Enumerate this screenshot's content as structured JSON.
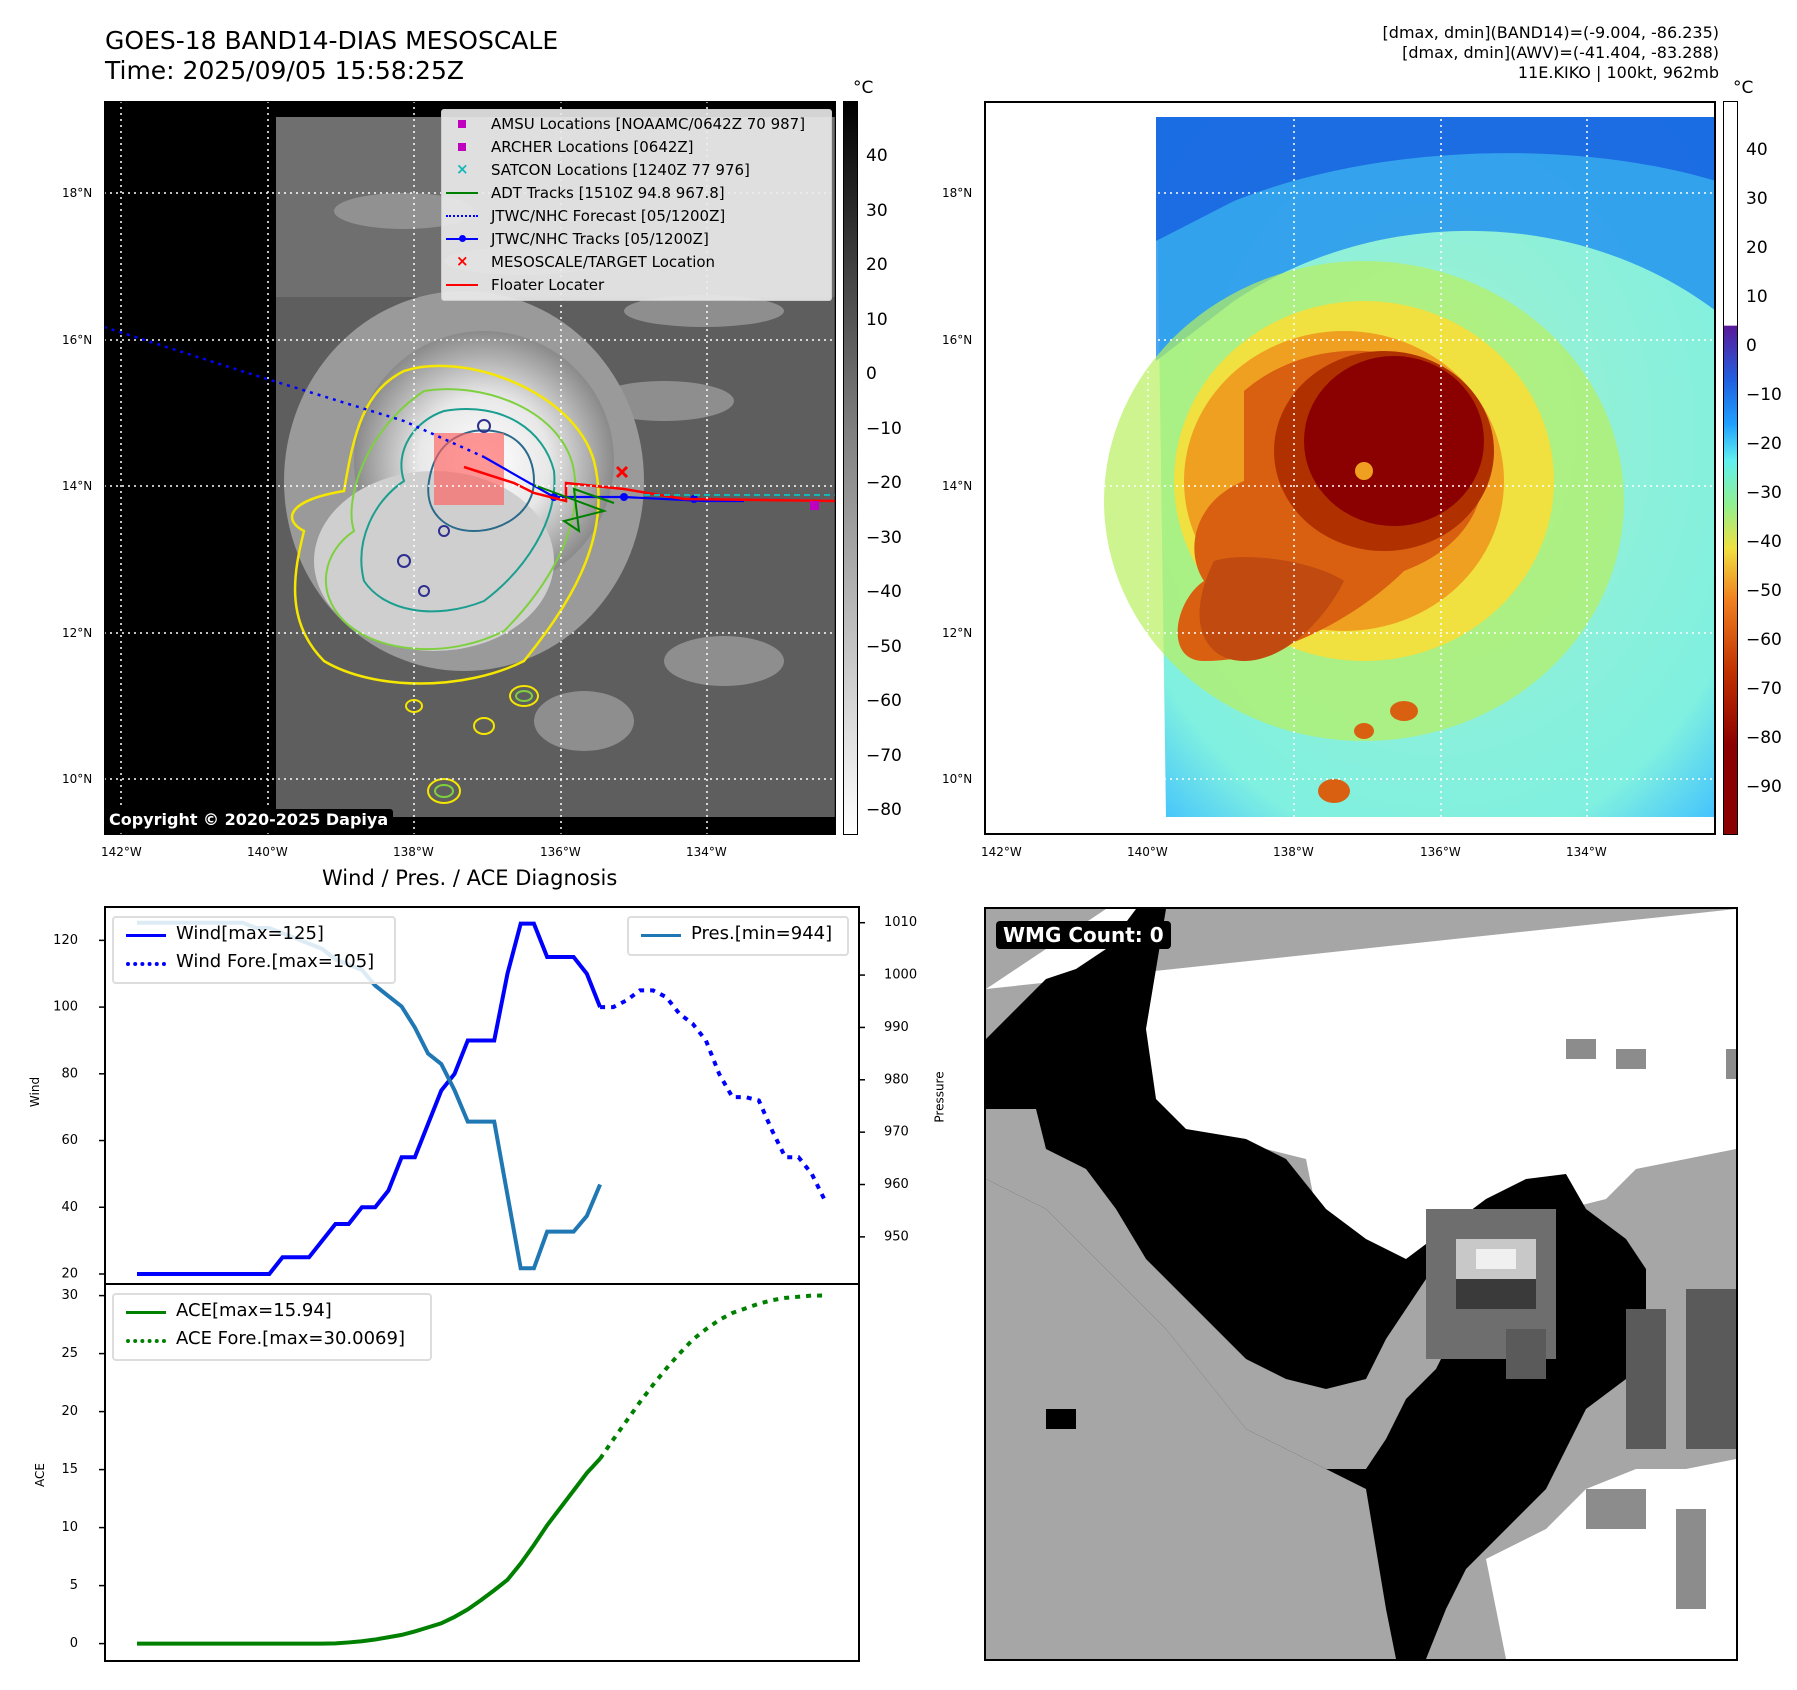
{
  "header": {
    "title_line1": "GOES-18 BAND14-DIAS MESOSCALE",
    "title_line2": "Time: 2025/09/05 15:58:25Z",
    "right_line1": "[dmax, dmin](BAND14)=(-9.004, -86.235)",
    "right_line2": "[dmax, dmin](AWV)=(-41.404, -83.288)",
    "right_line3": "11E.KIKO | 100kt, 962mb"
  },
  "map": {
    "lat_labels": [
      "18°N",
      "16°N",
      "14°N",
      "12°N",
      "10°N"
    ],
    "lon_labels": [
      "142°W",
      "140°W",
      "138°W",
      "136°W",
      "134°W"
    ],
    "copyright": "Copyright © 2020-2025 Dapiya",
    "legend": [
      {
        "label": "AMSU Locations [NOAAMC/0642Z 70 987]",
        "marker": "square",
        "color": "#bf00bf"
      },
      {
        "label": "ARCHER Locations [0642Z]",
        "marker": "square",
        "color": "#bf00bf"
      },
      {
        "label": "SATCON Locations [1240Z 77 976]",
        "marker": "x",
        "color": "#17b6b6"
      },
      {
        "label": "ADT Tracks [1510Z 94.8 967.8]",
        "marker": "line",
        "color": "#008000"
      },
      {
        "label": "JTWC/NHC Forecast [05/1200Z]",
        "marker": "dotted",
        "color": "#0000ff"
      },
      {
        "label": "JTWC/NHC Tracks [05/1200Z]",
        "marker": "line-dot",
        "color": "#0000ff"
      },
      {
        "label": "MESOSCALE/TARGET Location",
        "marker": "x",
        "color": "#ff0000"
      },
      {
        "label": "Floater Locater",
        "marker": "line",
        "color": "#ff0000"
      }
    ]
  },
  "colorbar_bw": {
    "unit": "°C",
    "ticks": [
      "40",
      "30",
      "20",
      "10",
      "0",
      "−10",
      "−20",
      "−30",
      "−40",
      "−50",
      "−60",
      "−70",
      "−80"
    ]
  },
  "colorbar_color": {
    "unit": "°C",
    "ticks": [
      "40",
      "30",
      "20",
      "10",
      "0",
      "−10",
      "−20",
      "−30",
      "−40",
      "−50",
      "−60",
      "−70",
      "−80",
      "−90"
    ]
  },
  "wmg": {
    "label": "WMG Count: 0"
  },
  "chart_data": [
    {
      "type": "line",
      "title": "Wind / Pres. / ACE Diagnosis",
      "ylabel": "Wind",
      "ylabel_right": "Pressure",
      "ylim": [
        17,
        130
      ],
      "ylim_right": [
        941,
        1013
      ],
      "yticks": [
        20,
        40,
        60,
        80,
        100,
        120
      ],
      "yticks_right": [
        950,
        960,
        970,
        980,
        990,
        1000,
        1010
      ],
      "series": [
        {
          "name": "Wind[max=125]",
          "color": "#0000ff",
          "style": "solid",
          "axis": "left",
          "x": [
            0,
            1,
            2,
            3,
            4,
            5,
            6,
            7,
            8,
            9,
            10,
            11,
            12,
            13,
            14,
            15,
            16,
            17,
            18,
            19,
            20,
            21,
            22,
            23,
            24,
            25,
            26,
            27,
            28,
            29,
            30,
            31,
            32,
            33,
            34,
            35
          ],
          "y": [
            20,
            20,
            20,
            20,
            20,
            20,
            20,
            20,
            20,
            20,
            20,
            25,
            25,
            25,
            30,
            35,
            35,
            40,
            40,
            45,
            55,
            55,
            65,
            75,
            80,
            90,
            90,
            90,
            110,
            125,
            125,
            115,
            115,
            115,
            110,
            100
          ]
        },
        {
          "name": "Wind Fore.[max=105]",
          "color": "#0000ff",
          "style": "dotted",
          "axis": "left",
          "x": [
            35,
            36,
            37,
            38,
            39,
            40,
            41,
            42,
            43,
            44,
            45,
            46,
            47,
            48,
            49,
            50,
            51,
            52
          ],
          "y": [
            100,
            100,
            102,
            105,
            105,
            103,
            98,
            95,
            90,
            80,
            73,
            73,
            72,
            63,
            55,
            55,
            50,
            42
          ]
        },
        {
          "name": "Pres.[min=944]",
          "color": "#1f77b4",
          "style": "solid",
          "axis": "right",
          "x": [
            0,
            1,
            2,
            3,
            4,
            5,
            6,
            7,
            8,
            9,
            10,
            11,
            12,
            13,
            14,
            15,
            16,
            17,
            18,
            19,
            20,
            21,
            22,
            23,
            24,
            25,
            26,
            27,
            28,
            29,
            30,
            31,
            32,
            33,
            34,
            35
          ],
          "y": [
            1010,
            1010,
            1010,
            1010,
            1010,
            1010,
            1010,
            1010,
            1010,
            1009,
            1009,
            1008,
            1007,
            1006,
            1005,
            1003,
            1002,
            1001,
            998,
            996,
            994,
            990,
            985,
            983,
            978,
            972,
            972,
            972,
            958,
            944,
            944,
            951,
            951,
            951,
            954,
            960
          ]
        }
      ]
    },
    {
      "type": "line",
      "ylabel": "ACE",
      "ylim": [
        -1.5,
        31
      ],
      "yticks": [
        0,
        5,
        10,
        15,
        20,
        25,
        30
      ],
      "series": [
        {
          "name": "ACE[max=15.94]",
          "color": "#008000",
          "style": "solid",
          "x": [
            0,
            2,
            4,
            6,
            8,
            10,
            12,
            13,
            14,
            15,
            16,
            17,
            18,
            19,
            20,
            21,
            22,
            23,
            24,
            25,
            26,
            27,
            28,
            29,
            30,
            31,
            32,
            33,
            34,
            35
          ],
          "y": [
            0,
            0,
            0,
            0,
            0,
            0,
            0,
            0,
            0,
            0.02,
            0.1,
            0.2,
            0.35,
            0.55,
            0.75,
            1.05,
            1.4,
            1.75,
            2.3,
            2.95,
            3.75,
            4.6,
            5.5,
            6.9,
            8.5,
            10.2,
            11.7,
            13.2,
            14.7,
            15.94
          ]
        },
        {
          "name": "ACE Fore.[max=30.0069]",
          "color": "#008000",
          "style": "dotted",
          "x": [
            35,
            36,
            37,
            38,
            39,
            40,
            41,
            42,
            43,
            44,
            45,
            46,
            47,
            48,
            49,
            50,
            51,
            52
          ],
          "y": [
            15.94,
            17.6,
            19.2,
            20.8,
            22.3,
            23.7,
            25.0,
            26.2,
            27.1,
            27.9,
            28.5,
            28.9,
            29.3,
            29.6,
            29.8,
            29.9,
            30.0,
            30.0069
          ]
        }
      ]
    }
  ]
}
